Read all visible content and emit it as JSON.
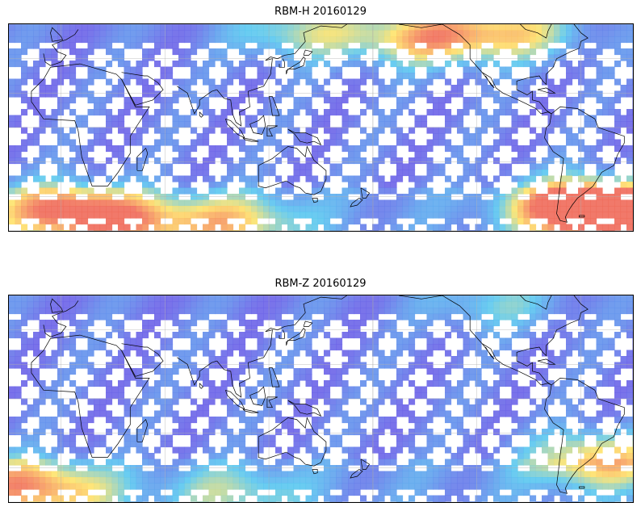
{
  "panels": [
    {
      "title": "RBM-H 20160129",
      "hot_zones": [
        {
          "lon": -150,
          "lat": 52,
          "intensity": 0.7
        },
        {
          "lon": -60,
          "lat": -45,
          "intensity": 1.0
        },
        {
          "lon": -40,
          "lat": -52,
          "intensity": 0.95
        },
        {
          "lon": 0,
          "lat": -48,
          "intensity": 0.8
        },
        {
          "lon": 100,
          "lat": -55,
          "intensity": 0.55
        },
        {
          "lon": 40,
          "lat": -55,
          "intensity": 0.6
        },
        {
          "lon": -100,
          "lat": 55,
          "intensity": 0.55
        },
        {
          "lon": 140,
          "lat": 55,
          "intensity": 0.45
        }
      ]
    },
    {
      "title": "RBM-Z 20160129",
      "hot_zones": [
        {
          "lon": -50,
          "lat": -35,
          "intensity": 0.7
        },
        {
          "lon": -30,
          "lat": -48,
          "intensity": 0.5
        },
        {
          "lon": 0,
          "lat": -55,
          "intensity": 0.45
        },
        {
          "lon": 100,
          "lat": -55,
          "intensity": 0.35
        },
        {
          "lon": -110,
          "lat": 55,
          "intensity": 0.3
        }
      ]
    }
  ],
  "colors": {
    "low": "#6b63e8",
    "mid": "#5ac8f0",
    "high": "#ffe36a",
    "hot": "#f06a5a",
    "coast": "#000000",
    "grid": "#b0b0b0"
  }
}
